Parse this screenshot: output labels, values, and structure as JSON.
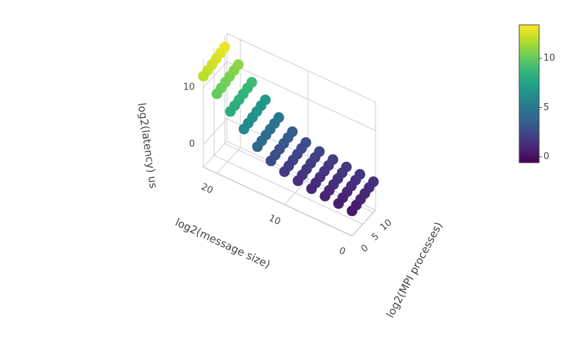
{
  "chart_data": {
    "type": "scatter3d",
    "xlabel": "log2(message size)",
    "ylabel": "log2(MPI processes)",
    "zlabel": "log2(latency) us",
    "xlim": [
      0,
      22
    ],
    "ylim": [
      0,
      11
    ],
    "zlim": [
      -4,
      15
    ],
    "xticks": [
      0,
      10,
      20
    ],
    "yticks": [
      0,
      5,
      10
    ],
    "zticks": [
      0,
      10
    ],
    "colorscale": [
      "#440154",
      "#482878",
      "#3e4989",
      "#31688e",
      "#26828e",
      "#1f9e89",
      "#35b779",
      "#6ece58",
      "#b5de2b",
      "#fde725"
    ],
    "clim": [
      -0.6,
      13.4
    ],
    "colorbar_ticks": [
      0,
      5,
      10
    ],
    "series": [
      {
        "x": [
          22,
          22,
          22,
          22,
          22,
          22,
          20,
          20,
          20,
          20,
          20,
          20,
          18,
          18,
          18,
          18,
          18,
          18,
          16,
          16,
          16,
          16,
          16,
          16,
          14,
          14,
          14,
          14,
          14,
          14,
          12,
          12,
          12,
          12,
          12,
          12,
          10,
          10,
          10,
          10,
          10,
          10,
          8,
          8,
          8,
          8,
          8,
          8,
          6,
          6,
          6,
          6,
          6,
          6,
          4,
          4,
          4,
          4,
          4,
          4,
          2,
          2,
          2,
          2,
          2,
          2,
          0,
          0,
          0,
          0,
          0,
          0
        ],
        "y": [
          10,
          8,
          6,
          4,
          2,
          0,
          10,
          8,
          6,
          4,
          2,
          0,
          10,
          8,
          6,
          4,
          2,
          0,
          10,
          8,
          6,
          4,
          2,
          0,
          10,
          8,
          6,
          4,
          2,
          0,
          10,
          8,
          6,
          4,
          2,
          0,
          10,
          8,
          6,
          4,
          2,
          0,
          10,
          8,
          6,
          4,
          2,
          0,
          10,
          8,
          6,
          4,
          2,
          0,
          10,
          8,
          6,
          4,
          2,
          0,
          10,
          8,
          6,
          4,
          2,
          0,
          10,
          8,
          6,
          4,
          2,
          0
        ],
        "z": [
          13,
          12.8,
          12.6,
          12.4,
          12.2,
          12,
          11,
          10.8,
          10.6,
          10.4,
          10.2,
          10,
          9,
          8.8,
          8.6,
          8.4,
          8.2,
          8,
          7,
          6.8,
          6.6,
          6.4,
          6.2,
          6,
          5,
          4.8,
          4.6,
          4.4,
          4.2,
          4,
          3.6,
          3.4,
          3.2,
          3,
          2.8,
          2.6,
          2.8,
          2.6,
          2.4,
          2.2,
          2,
          1.8,
          2.3,
          2.1,
          1.9,
          1.7,
          1.5,
          1.3,
          2,
          1.8,
          1.6,
          1.4,
          1.2,
          1,
          1.8,
          1.6,
          1.4,
          1.2,
          1,
          0.8,
          1.6,
          1.4,
          1.2,
          1,
          0.8,
          0.6,
          1.4,
          1.2,
          1,
          0.8,
          0.6,
          0.4
        ]
      }
    ]
  }
}
